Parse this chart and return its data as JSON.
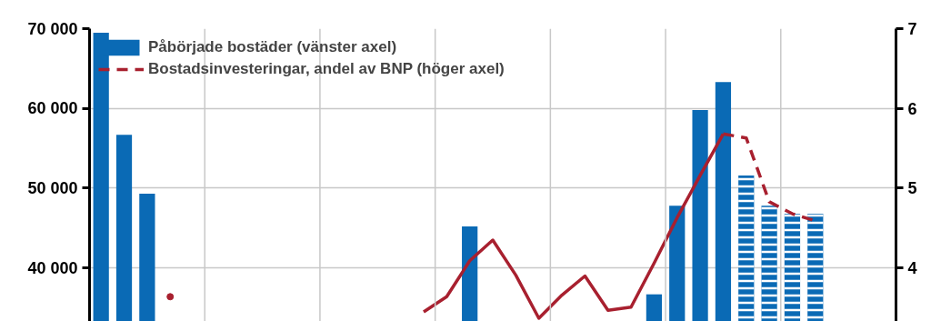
{
  "chart_data": {
    "type": "bar",
    "categories": [
      null,
      null,
      null,
      null,
      null,
      null,
      null,
      null,
      null,
      null,
      null,
      null,
      null,
      null,
      null,
      null,
      null,
      null,
      null,
      null,
      null,
      null,
      null,
      null,
      null,
      null,
      null,
      null,
      null,
      null,
      null,
      null,
      null,
      null,
      null
    ],
    "series": [
      {
        "name": "Påbörjade bostäder (vänster axel)",
        "color": "#0a6ab5",
        "values": [
          69500,
          56700,
          49300,
          null,
          null,
          null,
          null,
          null,
          null,
          null,
          null,
          null,
          null,
          null,
          null,
          null,
          45200,
          null,
          null,
          null,
          null,
          null,
          null,
          null,
          36700,
          47800,
          59800,
          63300,
          null,
          null,
          null,
          null,
          null,
          null,
          null
        ]
      },
      {
        "color": "#0a6ab5",
        "values": [
          null,
          null,
          null,
          null,
          null,
          null,
          null,
          null,
          null,
          null,
          null,
          null,
          null,
          null,
          null,
          null,
          null,
          null,
          null,
          null,
          null,
          null,
          null,
          null,
          null,
          null,
          null,
          null,
          51600,
          47800,
          46800,
          46800,
          null,
          null,
          null
        ]
      },
      {
        "type": "line",
        "axis": "y2",
        "color": "#a8202f",
        "line_style": "solid",
        "values": [
          null,
          null,
          null,
          3.64,
          null,
          null,
          null,
          null,
          null,
          null,
          null,
          null,
          null,
          null,
          3.45,
          3.64,
          4.09,
          4.35,
          3.91,
          3.37,
          3.66,
          3.9,
          3.47,
          3.51,
          4.06,
          4.63,
          5.16,
          5.68,
          null,
          null,
          null,
          null,
          null,
          null,
          null
        ]
      },
      {
        "type": "line",
        "axis": "y2",
        "name": "Bostadsinvesteringar, andel av BNP (höger axel)",
        "color": "#a8202f",
        "line_style": "dashed",
        "values": [
          null,
          null,
          null,
          null,
          null,
          null,
          null,
          null,
          null,
          null,
          null,
          null,
          null,
          null,
          null,
          null,
          null,
          null,
          null,
          null,
          null,
          null,
          null,
          null,
          null,
          null,
          null,
          5.68,
          5.63,
          4.83,
          4.68,
          4.59,
          null,
          null,
          null
        ]
      }
    ],
    "ylim": [
      33300,
      70000
    ],
    "yticks": [
      {
        "value": 40000,
        "label": "40 000"
      },
      {
        "value": 50000,
        "label": "50 000"
      },
      {
        "value": 60000,
        "label": "60 000"
      },
      {
        "value": 70000,
        "label": "70 000"
      }
    ],
    "y2lim": [
      3.33,
      7
    ],
    "y2ticks": [
      4,
      5,
      6,
      7
    ],
    "tick_labels": "y",
    "grid": true,
    "legend": "top left"
  }
}
